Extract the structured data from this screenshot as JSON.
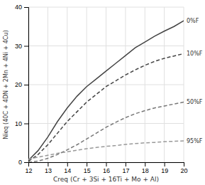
{
  "chart_data": {
    "type": "line",
    "xlabel": "Creq (Cr + 3Si + 16Ti + Mo + Al)",
    "ylabel": "Nieq (40C + 4DN + 2Mn + 4Ni + 4Cu)",
    "x": [
      12,
      12.5,
      13,
      13.5,
      14,
      14.5,
      15,
      15.5,
      16,
      16.5,
      17,
      17.5,
      18,
      18.5,
      19,
      19.5,
      20
    ],
    "series": [
      {
        "name": "0%F",
        "color": "#444444",
        "line_style": "solid",
        "values": [
          0.5,
          3.0,
          6.5,
          10.5,
          14.0,
          17.0,
          19.5,
          21.5,
          23.5,
          25.5,
          27.5,
          29.5,
          31.0,
          32.5,
          33.8,
          35.0,
          36.5
        ]
      },
      {
        "name": "10%F",
        "color": "#444444",
        "line_style": "dashed",
        "values": [
          0.2,
          2.0,
          4.5,
          7.5,
          10.5,
          13.0,
          15.5,
          17.5,
          19.5,
          21.0,
          22.5,
          23.8,
          25.0,
          26.0,
          26.8,
          27.4,
          28.0
        ]
      },
      {
        "name": "50%F",
        "color": "#777777",
        "line_style": "dashed",
        "values": [
          0.0,
          0.3,
          1.0,
          2.0,
          3.2,
          4.5,
          6.0,
          7.5,
          9.0,
          10.3,
          11.5,
          12.5,
          13.3,
          14.0,
          14.5,
          15.0,
          15.5
        ]
      },
      {
        "name": "95%F",
        "color": "#999999",
        "line_style": "dashed",
        "values": [
          0.8,
          1.3,
          1.8,
          2.3,
          2.7,
          3.1,
          3.5,
          3.8,
          4.1,
          4.3,
          4.6,
          4.8,
          5.0,
          5.1,
          5.3,
          5.4,
          5.5
        ]
      }
    ],
    "xlim": [
      12,
      20
    ],
    "ylim": [
      0,
      40
    ],
    "xticks": [
      12,
      13,
      14,
      15,
      16,
      17,
      18,
      19,
      20
    ],
    "yticks": [
      0,
      10,
      20,
      30,
      40
    ],
    "grid": true
  }
}
